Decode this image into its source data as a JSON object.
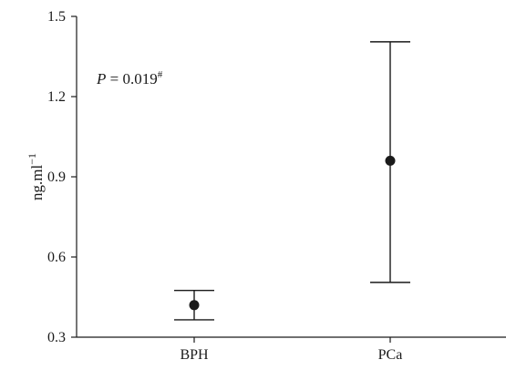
{
  "chart_data": {
    "type": "scatter",
    "subtype": "mean-with-error-bars",
    "categories": [
      "BPH",
      "PCa"
    ],
    "series": [
      {
        "mean": [
          0.42,
          0.96
        ],
        "lower": [
          0.365,
          0.505
        ],
        "upper": [
          0.475,
          1.405
        ]
      }
    ],
    "ylabel": "ng.ml",
    "ylabel_superscript": "−1",
    "ylim": [
      0.3,
      1.5
    ],
    "yticks": [
      "0.3",
      "0.6",
      "0.9",
      "1.2",
      "1.5"
    ],
    "annotation": {
      "prefix": "P",
      "text": " = 0.019",
      "superscript": "#"
    },
    "grid": false,
    "legend": "none",
    "colors": {
      "ink": "#1a1a1a"
    }
  }
}
